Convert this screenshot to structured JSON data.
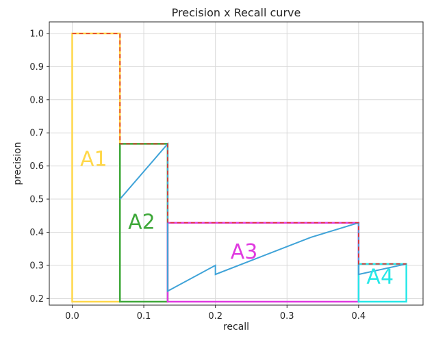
{
  "chart_data": {
    "type": "line",
    "title": "Precision x Recall curve",
    "xlabel": "recall",
    "ylabel": "precision",
    "xlim": [
      -0.032,
      0.49
    ],
    "ylim": [
      0.18,
      1.035
    ],
    "xticks": [
      "0.0",
      "0.1",
      "0.2",
      "0.3",
      "0.4"
    ],
    "yticks": [
      "0.2",
      "0.3",
      "0.4",
      "0.5",
      "0.6",
      "0.7",
      "0.8",
      "0.9",
      "1.0"
    ],
    "grid": true,
    "series": [
      {
        "color": "#3fa3d8",
        "x": [
          0.0667,
          0.1333,
          0.1333,
          0.2,
          0.2,
          0.3333,
          0.4,
          0.4,
          0.4667
        ],
        "y": [
          0.5,
          0.6667,
          0.2222,
          0.3,
          0.2727,
          0.3846,
          0.4286,
          0.2727,
          0.3043
        ]
      },
      {
        "color": "#e0302a",
        "style": "dashed",
        "x": [
          0.0,
          0.0667,
          0.0667,
          0.1333,
          0.1333,
          0.4,
          0.4,
          0.4667
        ],
        "y": [
          1.0,
          1.0,
          0.6667,
          0.6667,
          0.4286,
          0.4286,
          0.3043,
          0.3043
        ]
      }
    ],
    "regions": [
      {
        "label": "A1",
        "color": "#ffd84a",
        "x0": 0.0,
        "x1": 0.0667,
        "y1": 1.0,
        "label_x": 0.03,
        "label_y": 0.6
      },
      {
        "label": "A2",
        "color": "#3fa83a",
        "x0": 0.0667,
        "x1": 0.1333,
        "y1": 0.6667,
        "label_x": 0.097,
        "label_y": 0.41
      },
      {
        "label": "A3",
        "color": "#e03ae0",
        "x0": 0.1333,
        "x1": 0.4,
        "y1": 0.4286,
        "label_x": 0.24,
        "label_y": 0.32
      },
      {
        "label": "A4",
        "color": "#26e8e8",
        "x0": 0.4,
        "x1": 0.4667,
        "y1": 0.3043,
        "label_x": 0.43,
        "label_y": 0.245
      }
    ]
  }
}
